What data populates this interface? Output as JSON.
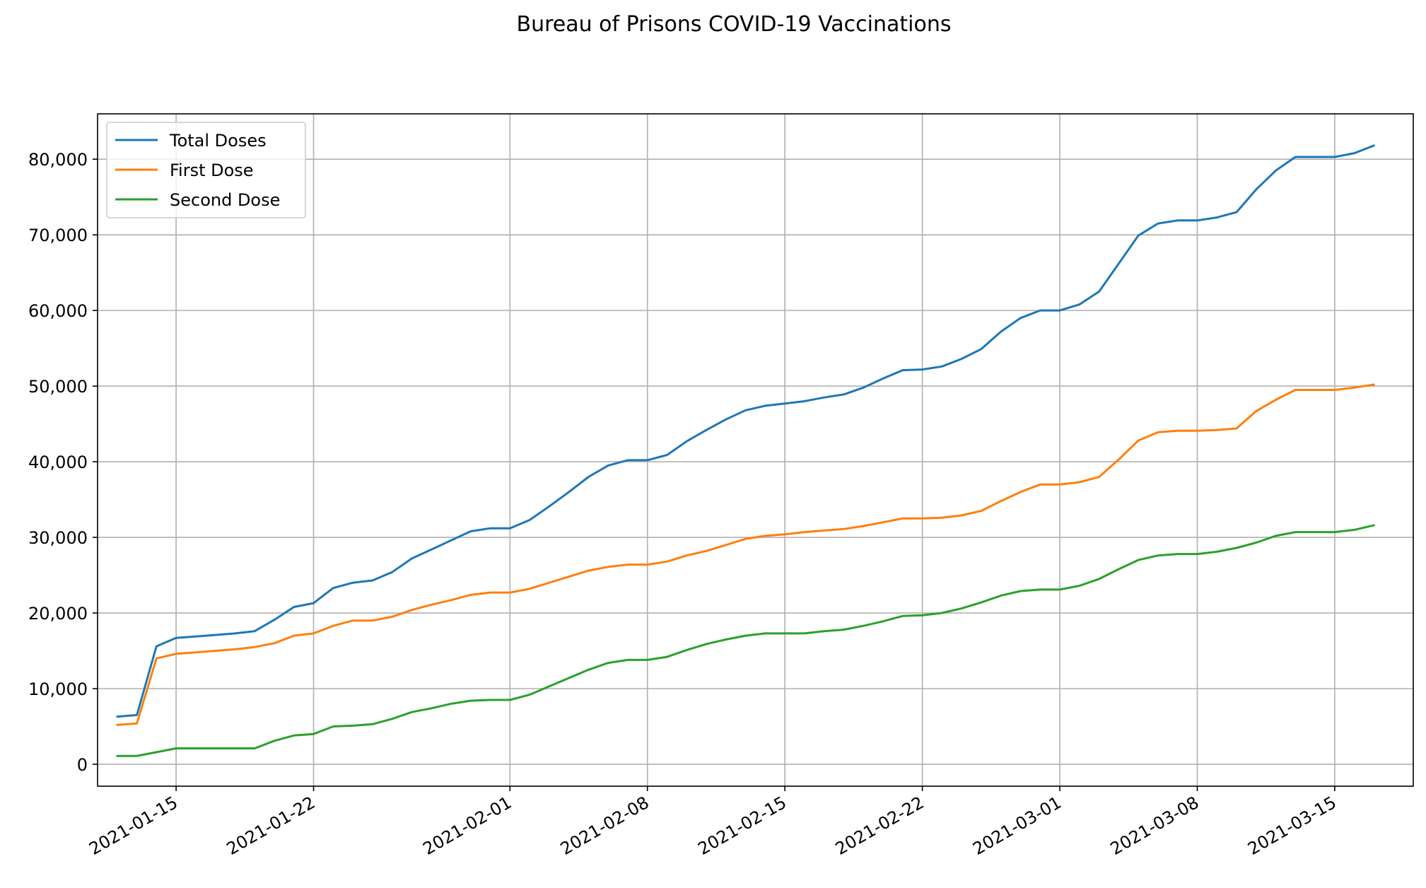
{
  "chart_data": {
    "type": "line",
    "title": "Bureau of Prisons COVID-19 Vaccinations",
    "xlabel": "",
    "ylabel": "",
    "x_start": "2021-01-12",
    "x": [
      "2021-01-12",
      "2021-01-13",
      "2021-01-14",
      "2021-01-15",
      "2021-01-16",
      "2021-01-17",
      "2021-01-18",
      "2021-01-19",
      "2021-01-20",
      "2021-01-21",
      "2021-01-22",
      "2021-01-23",
      "2021-01-24",
      "2021-01-25",
      "2021-01-26",
      "2021-01-27",
      "2021-01-28",
      "2021-01-29",
      "2021-01-30",
      "2021-01-31",
      "2021-02-01",
      "2021-02-02",
      "2021-02-03",
      "2021-02-04",
      "2021-02-05",
      "2021-02-06",
      "2021-02-07",
      "2021-02-08",
      "2021-02-09",
      "2021-02-10",
      "2021-02-11",
      "2021-02-12",
      "2021-02-13",
      "2021-02-14",
      "2021-02-15",
      "2021-02-16",
      "2021-02-17",
      "2021-02-18",
      "2021-02-19",
      "2021-02-20",
      "2021-02-21",
      "2021-02-22",
      "2021-02-23",
      "2021-02-24",
      "2021-02-25",
      "2021-02-26",
      "2021-02-27",
      "2021-02-28",
      "2021-03-01",
      "2021-03-02",
      "2021-03-03",
      "2021-03-04",
      "2021-03-05",
      "2021-03-06",
      "2021-03-07",
      "2021-03-08",
      "2021-03-09",
      "2021-03-10",
      "2021-03-11",
      "2021-03-12",
      "2021-03-13",
      "2021-03-14",
      "2021-03-15",
      "2021-03-16",
      "2021-03-17"
    ],
    "series": [
      {
        "name": "Total Doses",
        "color": "#1f77b4",
        "values": [
          6300,
          6500,
          15600,
          16700,
          16900,
          17100,
          17300,
          17600,
          19100,
          20800,
          21300,
          23300,
          24000,
          24300,
          25400,
          27200,
          28400,
          29600,
          30800,
          31200,
          31200,
          32300,
          34100,
          36000,
          38000,
          39500,
          40200,
          40200,
          40900,
          42700,
          44200,
          45600,
          46800,
          47400,
          47700,
          48000,
          48500,
          48900,
          49800,
          51000,
          52100,
          52200,
          52600,
          53600,
          54900,
          57200,
          59000,
          60000,
          60000,
          60800,
          62500,
          66200,
          69900,
          71500,
          71900,
          71900,
          72300,
          73000,
          76000,
          78500,
          80300,
          80300,
          80300,
          80800,
          81800
        ]
      },
      {
        "name": "First Dose",
        "color": "#ff7f0e",
        "values": [
          5200,
          5400,
          14000,
          14600,
          14800,
          15000,
          15200,
          15500,
          16000,
          17000,
          17300,
          18300,
          19000,
          19000,
          19500,
          20400,
          21100,
          21700,
          22400,
          22700,
          22700,
          23200,
          24000,
          24800,
          25600,
          26100,
          26400,
          26400,
          26800,
          27600,
          28200,
          29000,
          29800,
          30200,
          30400,
          30700,
          30900,
          31100,
          31500,
          32000,
          32500,
          32500,
          32600,
          32900,
          33500,
          34800,
          36000,
          37000,
          37000,
          37300,
          38000,
          40300,
          42800,
          43900,
          44100,
          44100,
          44200,
          44400,
          46700,
          48200,
          49500,
          49500,
          49500,
          49800,
          50200
        ]
      },
      {
        "name": "Second Dose",
        "color": "#2ca02c",
        "values": [
          1100,
          1100,
          1600,
          2100,
          2100,
          2100,
          2100,
          2100,
          3100,
          3800,
          4000,
          5000,
          5100,
          5300,
          6000,
          6900,
          7400,
          8000,
          8400,
          8500,
          8500,
          9200,
          10300,
          11400,
          12500,
          13400,
          13800,
          13800,
          14200,
          15100,
          15900,
          16500,
          17000,
          17300,
          17300,
          17300,
          17600,
          17800,
          18300,
          18900,
          19600,
          19700,
          20000,
          20600,
          21400,
          22300,
          22900,
          23100,
          23100,
          23600,
          24500,
          25800,
          27000,
          27600,
          27800,
          27800,
          28100,
          28600,
          29300,
          30200,
          30700,
          30700,
          30700,
          31000,
          31600
        ]
      }
    ],
    "x_ticks": [
      "2021-01-15",
      "2021-01-22",
      "2021-02-01",
      "2021-02-08",
      "2021-02-15",
      "2021-02-22",
      "2021-03-01",
      "2021-03-08",
      "2021-03-15"
    ],
    "y_ticks": [
      0,
      10000,
      20000,
      30000,
      40000,
      50000,
      60000,
      70000,
      80000
    ],
    "y_tick_labels": [
      "0",
      "10,000",
      "20,000",
      "30,000",
      "40,000",
      "50,000",
      "60,000",
      "70,000",
      "80,000"
    ],
    "ylim": [
      -2900,
      86000
    ],
    "xlim": [
      "2021-01-11",
      "2021-03-19"
    ],
    "grid": true,
    "legend_position": "top-left"
  }
}
